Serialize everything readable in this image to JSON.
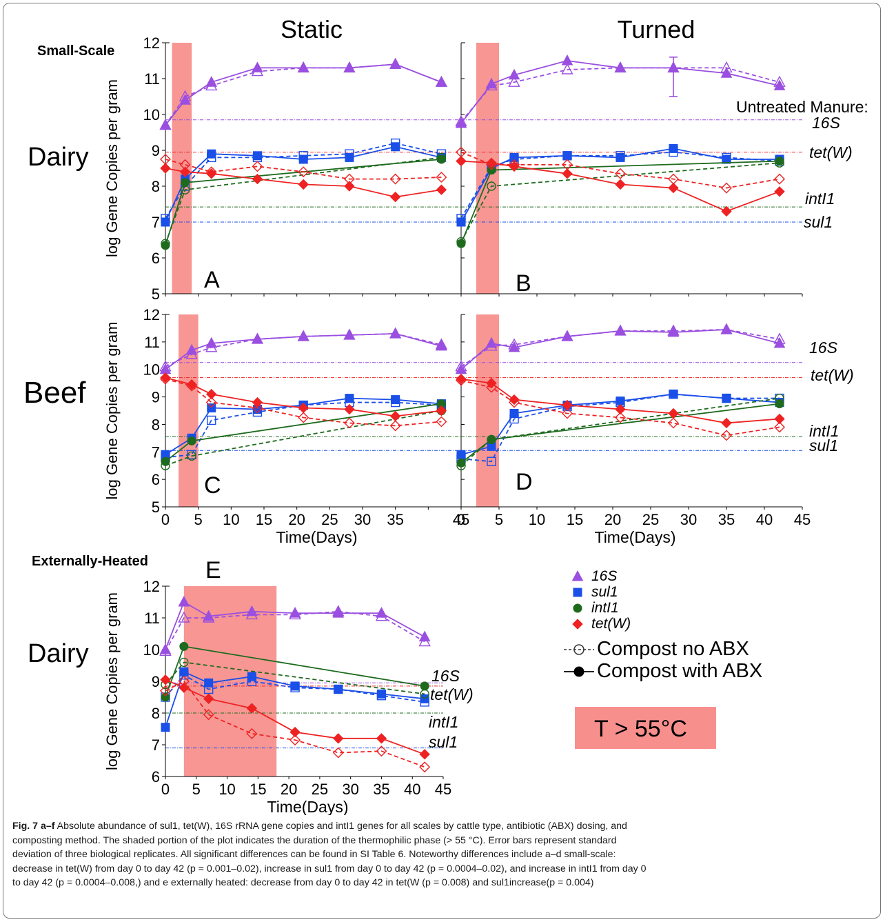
{
  "figure": {
    "column_titles": [
      "Static",
      "Turned"
    ],
    "scale_labels": {
      "small": "Small-Scale",
      "heated": "Externally-Heated"
    },
    "row_labels": {
      "dairy": "Dairy",
      "beef": "Beef",
      "dairy_heated": "Dairy"
    },
    "untreated_title": "Untreated Manure:",
    "gene_labels": [
      "16S",
      "tet(W)",
      "intI1",
      "sul1"
    ],
    "legend": {
      "items": [
        {
          "label": "16S",
          "color": "#9a4fe0",
          "icon": "triangle"
        },
        {
          "label": "sul1",
          "color": "#1a4fe8",
          "icon": "square"
        },
        {
          "label": "intI1",
          "color": "#1e6b1e",
          "icon": "circle"
        },
        {
          "label": "tet(W)",
          "color": "#ee2222",
          "icon": "diamond"
        }
      ],
      "dose_items": [
        "Compost no ABX",
        "Compost with ABX"
      ]
    },
    "temp_label": "T > 55°C",
    "colors": {
      "s16": "#9a4fe0",
      "sul1": "#1a4fe8",
      "int": "#1e6b1e",
      "tet": "#ee2222",
      "shade": "#f7908d"
    }
  },
  "chart_data": [
    {
      "panel": "A",
      "type": "line",
      "ylabel": "log Gene Copies per gram",
      "xlim": [
        0,
        45
      ],
      "ylim": [
        5,
        12
      ],
      "xticks": [],
      "thermo_days": [
        1,
        4
      ],
      "series": [
        {
          "gene": "16S",
          "dose": "with ABX",
          "x": [
            0,
            3,
            7,
            14,
            21,
            28,
            35,
            42
          ],
          "y": [
            9.7,
            10.4,
            10.9,
            11.3,
            11.3,
            11.3,
            11.4,
            10.9
          ]
        },
        {
          "gene": "16S",
          "dose": "no ABX",
          "x": [
            0,
            3,
            7,
            14,
            21,
            28,
            35,
            42
          ],
          "y": [
            9.7,
            10.5,
            10.8,
            11.2,
            11.3,
            11.3,
            11.4,
            10.9
          ]
        },
        {
          "gene": "sul1",
          "dose": "with ABX",
          "x": [
            0,
            3,
            7,
            14,
            21,
            28,
            35,
            42
          ],
          "y": [
            7.0,
            8.2,
            8.9,
            8.85,
            8.75,
            8.8,
            9.1,
            8.8
          ]
        },
        {
          "gene": "sul1",
          "dose": "no ABX",
          "x": [
            0,
            3,
            7,
            14,
            21,
            28,
            35,
            42
          ],
          "y": [
            7.1,
            8.0,
            8.8,
            8.8,
            8.85,
            8.9,
            9.2,
            8.9
          ]
        },
        {
          "gene": "intI1",
          "dose": "with ABX",
          "x": [
            0,
            3,
            42
          ],
          "y": [
            6.35,
            8.1,
            8.75
          ]
        },
        {
          "gene": "intI1",
          "dose": "no ABX",
          "x": [
            0,
            3,
            42
          ],
          "y": [
            6.4,
            7.9,
            8.8
          ]
        },
        {
          "gene": "tet(W)",
          "dose": "with ABX",
          "x": [
            0,
            3,
            7,
            14,
            21,
            28,
            35,
            42
          ],
          "y": [
            8.5,
            8.4,
            8.35,
            8.2,
            8.05,
            8.0,
            7.7,
            7.9
          ]
        },
        {
          "gene": "tet(W)",
          "dose": "no ABX",
          "x": [
            0,
            3,
            7,
            14,
            21,
            28,
            35,
            42
          ],
          "y": [
            8.75,
            8.6,
            8.4,
            8.55,
            8.4,
            8.2,
            8.2,
            8.25
          ]
        }
      ],
      "untreated": {
        "16S": 9.85,
        "tet(W)": 8.95,
        "intI1": 7.42,
        "sul1": 7.0
      }
    },
    {
      "panel": "B",
      "type": "line",
      "xlim": [
        0,
        45
      ],
      "ylim": [
        5,
        12
      ],
      "xticks": [],
      "thermo_days": [
        2,
        5
      ],
      "series": [
        {
          "gene": "16S",
          "dose": "with ABX",
          "x": [
            0,
            4,
            7,
            14,
            21,
            28,
            35,
            42
          ],
          "y": [
            9.75,
            10.85,
            11.1,
            11.5,
            11.3,
            11.3,
            11.15,
            10.8
          ]
        },
        {
          "gene": "16S",
          "dose": "no ABX",
          "x": [
            0,
            4,
            7,
            14,
            21,
            28,
            35,
            42
          ],
          "y": [
            9.8,
            10.8,
            10.9,
            11.25,
            11.3,
            11.3,
            11.3,
            10.9
          ]
        },
        {
          "gene": "sul1",
          "dose": "with ABX",
          "x": [
            0,
            4,
            7,
            14,
            21,
            28,
            35,
            42
          ],
          "y": [
            7.0,
            8.5,
            8.8,
            8.85,
            8.8,
            9.05,
            8.75,
            8.75
          ]
        },
        {
          "gene": "sul1",
          "dose": "no ABX",
          "x": [
            0,
            4,
            7,
            14,
            21,
            28,
            35,
            42
          ],
          "y": [
            7.1,
            8.55,
            8.75,
            8.85,
            8.85,
            8.95,
            8.8,
            8.7
          ]
        },
        {
          "gene": "intI1",
          "dose": "with ABX",
          "x": [
            0,
            4,
            42
          ],
          "y": [
            6.4,
            8.45,
            8.7
          ]
        },
        {
          "gene": "intI1",
          "dose": "no ABX",
          "x": [
            0,
            4,
            42
          ],
          "y": [
            6.45,
            8.0,
            8.65
          ]
        },
        {
          "gene": "tet(W)",
          "dose": "with ABX",
          "x": [
            0,
            4,
            7,
            14,
            21,
            28,
            35,
            42
          ],
          "y": [
            8.7,
            8.65,
            8.55,
            8.35,
            8.05,
            7.95,
            7.3,
            7.85
          ]
        },
        {
          "gene": "tet(W)",
          "dose": "no ABX",
          "x": [
            0,
            4,
            7,
            14,
            21,
            28,
            35,
            42
          ],
          "y": [
            8.95,
            8.6,
            8.6,
            8.6,
            8.35,
            8.2,
            7.95,
            8.2
          ]
        }
      ],
      "untreated": {
        "16S": 9.85,
        "tet(W)": 8.95,
        "intI1": 7.42,
        "sul1": 7.0
      }
    },
    {
      "panel": "C",
      "type": "line",
      "xlabel": "Time(Days)",
      "ylabel": "log Gene Copies per gram",
      "xlim": [
        0,
        45
      ],
      "ylim": [
        5,
        12
      ],
      "xticks": [
        "0",
        "5",
        "10",
        "15",
        "20",
        "25",
        "30",
        "35",
        "45"
      ],
      "thermo_days": [
        2,
        5
      ],
      "series": [
        {
          "gene": "16S",
          "dose": "with ABX",
          "x": [
            0,
            4,
            7,
            14,
            21,
            28,
            35,
            42
          ],
          "y": [
            10.0,
            10.7,
            10.95,
            11.1,
            11.2,
            11.25,
            11.3,
            10.85
          ]
        },
        {
          "gene": "16S",
          "dose": "no ABX",
          "x": [
            0,
            4,
            7,
            14,
            21,
            28,
            35,
            42
          ],
          "y": [
            10.1,
            10.55,
            10.8,
            11.1,
            11.2,
            11.25,
            11.3,
            10.9
          ]
        },
        {
          "gene": "sul1",
          "dose": "with ABX",
          "x": [
            0,
            4,
            7,
            14,
            21,
            28,
            35,
            42
          ],
          "y": [
            6.9,
            7.5,
            8.6,
            8.55,
            8.7,
            8.95,
            8.9,
            8.75
          ]
        },
        {
          "gene": "sul1",
          "dose": "no ABX",
          "x": [
            0,
            4,
            7,
            14,
            21,
            28,
            35,
            42
          ],
          "y": [
            6.8,
            6.9,
            8.15,
            8.45,
            8.7,
            8.8,
            8.8,
            8.7
          ]
        },
        {
          "gene": "intI1",
          "dose": "with ABX",
          "x": [
            0,
            4,
            42
          ],
          "y": [
            6.65,
            7.4,
            8.75
          ]
        },
        {
          "gene": "intI1",
          "dose": "no ABX",
          "x": [
            0,
            4,
            42
          ],
          "y": [
            6.5,
            6.85,
            8.5
          ]
        },
        {
          "gene": "tet(W)",
          "dose": "with ABX",
          "x": [
            0,
            4,
            7,
            14,
            21,
            28,
            35,
            42
          ],
          "y": [
            9.7,
            9.45,
            9.1,
            8.8,
            8.6,
            8.55,
            8.3,
            8.5
          ]
        },
        {
          "gene": "tet(W)",
          "dose": "no ABX",
          "x": [
            0,
            4,
            7,
            14,
            21,
            28,
            35,
            42
          ],
          "y": [
            9.65,
            9.4,
            8.8,
            8.6,
            8.25,
            8.05,
            7.95,
            8.1
          ]
        }
      ],
      "untreated": {
        "16S": 10.25,
        "tet(W)": 9.7,
        "intI1": 7.55,
        "sul1": 7.05
      }
    },
    {
      "panel": "D",
      "type": "line",
      "xlabel": "Time(Days)",
      "xlim": [
        0,
        45
      ],
      "ylim": [
        5,
        12
      ],
      "xticks": [
        "0",
        "5",
        "10",
        "15",
        "20",
        "25",
        "30",
        "35",
        "40",
        "45"
      ],
      "thermo_days": [
        2,
        5
      ],
      "series": [
        {
          "gene": "16S",
          "dose": "with ABX",
          "x": [
            0,
            4,
            7,
            14,
            21,
            28,
            35,
            42
          ],
          "y": [
            10.0,
            10.95,
            10.8,
            11.2,
            11.4,
            11.35,
            11.45,
            10.95
          ]
        },
        {
          "gene": "16S",
          "dose": "no ABX",
          "x": [
            0,
            4,
            7,
            14,
            21,
            28,
            35,
            42
          ],
          "y": [
            10.1,
            10.85,
            10.9,
            11.2,
            11.4,
            11.4,
            11.45,
            11.1
          ]
        },
        {
          "gene": "sul1",
          "dose": "with ABX",
          "x": [
            0,
            4,
            7,
            14,
            21,
            28,
            35,
            42
          ],
          "y": [
            6.9,
            7.2,
            8.4,
            8.7,
            8.85,
            9.1,
            8.95,
            8.8
          ]
        },
        {
          "gene": "sul1",
          "dose": "no ABX",
          "x": [
            0,
            4,
            7,
            14,
            21,
            28,
            35,
            42
          ],
          "y": [
            6.75,
            6.65,
            8.2,
            8.65,
            8.8,
            9.1,
            8.95,
            8.95
          ]
        },
        {
          "gene": "intI1",
          "dose": "with ABX",
          "x": [
            0,
            4,
            42
          ],
          "y": [
            6.6,
            7.45,
            8.75
          ]
        },
        {
          "gene": "intI1",
          "dose": "no ABX",
          "x": [
            0,
            4,
            42
          ],
          "y": [
            6.5,
            7.45,
            8.95
          ]
        },
        {
          "gene": "tet(W)",
          "dose": "with ABX",
          "x": [
            0,
            4,
            7,
            14,
            21,
            28,
            35,
            42
          ],
          "y": [
            9.65,
            9.5,
            8.9,
            8.7,
            8.55,
            8.4,
            8.05,
            8.2
          ]
        },
        {
          "gene": "tet(W)",
          "dose": "no ABX",
          "x": [
            0,
            4,
            7,
            14,
            21,
            28,
            35,
            42
          ],
          "y": [
            9.6,
            9.35,
            8.8,
            8.4,
            8.25,
            8.05,
            7.6,
            7.9
          ]
        }
      ],
      "untreated": {
        "16S": 10.25,
        "tet(W)": 9.7,
        "intI1": 7.55,
        "sul1": 7.05
      }
    },
    {
      "panel": "E",
      "type": "line",
      "xlabel": "Time(Days)",
      "ylabel": "log Gene Copies per gram",
      "xlim": [
        0,
        45
      ],
      "ylim": [
        6,
        12
      ],
      "xticks": [
        "0",
        "5",
        "10",
        "15",
        "20",
        "25",
        "30",
        "35",
        "40",
        "45"
      ],
      "thermo_days": [
        3,
        18
      ],
      "series": [
        {
          "gene": "16S",
          "dose": "with ABX",
          "x": [
            0,
            3,
            7,
            14,
            21,
            28,
            35,
            42
          ],
          "y": [
            10.0,
            11.5,
            11.05,
            11.2,
            11.15,
            11.15,
            11.15,
            10.4
          ]
        },
        {
          "gene": "16S",
          "dose": "no ABX",
          "x": [
            0,
            3,
            7,
            14,
            21,
            28,
            35,
            42
          ],
          "y": [
            9.95,
            11.0,
            11.0,
            11.1,
            11.1,
            11.2,
            11.05,
            10.25
          ]
        },
        {
          "gene": "sul1",
          "dose": "with ABX",
          "x": [
            0,
            3,
            7,
            14,
            21,
            28,
            35,
            42
          ],
          "y": [
            7.55,
            9.3,
            8.95,
            9.15,
            8.85,
            8.75,
            8.6,
            8.45
          ]
        },
        {
          "gene": "sul1",
          "dose": "no ABX",
          "x": [
            0,
            3,
            7,
            14,
            21,
            28,
            35,
            42
          ],
          "y": [
            8.5,
            9.2,
            8.75,
            9.0,
            8.8,
            8.75,
            8.55,
            8.35
          ]
        },
        {
          "gene": "intI1",
          "dose": "with ABX",
          "x": [
            0,
            3,
            42
          ],
          "y": [
            8.5,
            10.1,
            8.85
          ]
        },
        {
          "gene": "intI1",
          "dose": "no ABX",
          "x": [
            0,
            3,
            42
          ],
          "y": [
            8.9,
            9.6,
            8.6
          ]
        },
        {
          "gene": "tet(W)",
          "dose": "with ABX",
          "x": [
            0,
            3,
            7,
            14,
            21,
            28,
            35,
            42
          ],
          "y": [
            9.05,
            8.8,
            8.45,
            8.15,
            7.4,
            7.2,
            7.2,
            6.7
          ]
        },
        {
          "gene": "tet(W)",
          "dose": "no ABX",
          "x": [
            0,
            3,
            7,
            14,
            21,
            28,
            35,
            42
          ],
          "y": [
            8.7,
            9.0,
            7.95,
            7.35,
            7.15,
            6.75,
            6.8,
            6.3
          ]
        }
      ],
      "untreated": {
        "16S": 8.95,
        "tet(W)": 8.85,
        "intI1": 8.0,
        "sul1": 6.9
      }
    }
  ],
  "caption": {
    "lead": "Fig. 7 a–f",
    "line1": " Absolute abundance of sul1, tet(W), 16S rRNA gene copies and intI1 genes for all scales by cattle type, antibiotic (ABX) dosing, and",
    "line2": "composting method. The shaded portion of the plot indicates the duration of the thermophilic phase (> 55 °C). Error bars represent standard",
    "line3": "deviation of three biological replicates. All significant differences can be found in SI Table 6. Noteworthy differences include a–d small-scale:",
    "line4": "decrease in tet(W) from day 0 to day 42 (p = 0.001–0.02), increase in sul1 from day 0 to day 42 (p = 0.0004–0.02), and increase in intI1 from day 0",
    "line5": "to day 42 (p = 0.0004–0.008,) and e externally heated: decrease from day 0 to day 42 in tet(W (p = 0.008) and sul1increase(p = 0.004)"
  }
}
